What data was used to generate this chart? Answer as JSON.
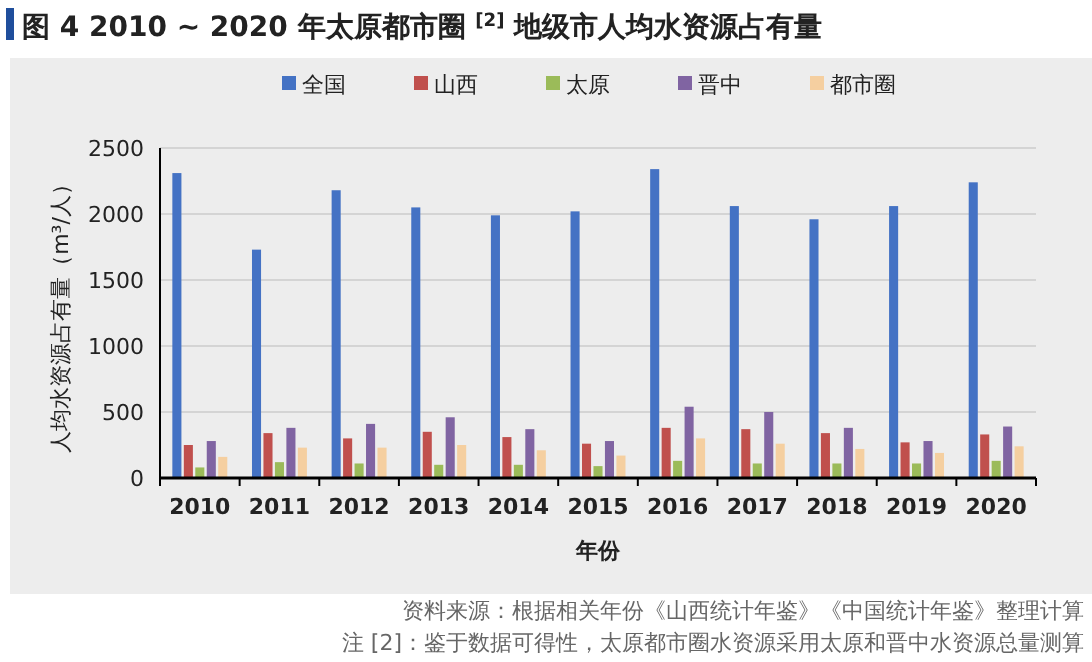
{
  "chart_data": {
    "type": "bar",
    "title": "图 4  2010 ~ 2020 年太原都市圈 $^{[2]}$ 地级市人均水资源占有量",
    "xlabel": "年份",
    "ylabel": "人均水资源占有量（m³/人）",
    "categories": [
      "2010",
      "2011",
      "2012",
      "2013",
      "2014",
      "2015",
      "2016",
      "2017",
      "2018",
      "2019",
      "2020"
    ],
    "series": [
      {
        "name": "全国",
        "color": "#4472c4",
        "values": [
          2310,
          1730,
          2180,
          2050,
          1990,
          2020,
          2340,
          2060,
          1960,
          2060,
          2240
        ]
      },
      {
        "name": "山西",
        "color": "#c0504d",
        "values": [
          250,
          340,
          300,
          350,
          310,
          260,
          380,
          370,
          340,
          270,
          330
        ]
      },
      {
        "name": "太原",
        "color": "#9bbb59",
        "values": [
          80,
          120,
          110,
          100,
          100,
          90,
          130,
          110,
          110,
          110,
          130
        ]
      },
      {
        "name": "晋中",
        "color": "#8064a2",
        "values": [
          280,
          380,
          410,
          460,
          370,
          280,
          540,
          500,
          380,
          280,
          390
        ]
      },
      {
        "name": "都市圈",
        "color": "#f5cfa0",
        "values": [
          160,
          230,
          230,
          250,
          210,
          170,
          300,
          260,
          220,
          190,
          240
        ]
      }
    ],
    "ylim": [
      0,
      2500
    ],
    "yticks": [
      0,
      500,
      1000,
      1500,
      2000,
      2500
    ],
    "grid": "y",
    "legend": "top",
    "annotations": [
      "资料来源：根据相关年份《山西统计年鉴》《中国统计年鉴》整理计算",
      "注 [2]：鉴于数据可得性，太原都市圈水资源采用太原和晋中水资源总量测算"
    ]
  }
}
